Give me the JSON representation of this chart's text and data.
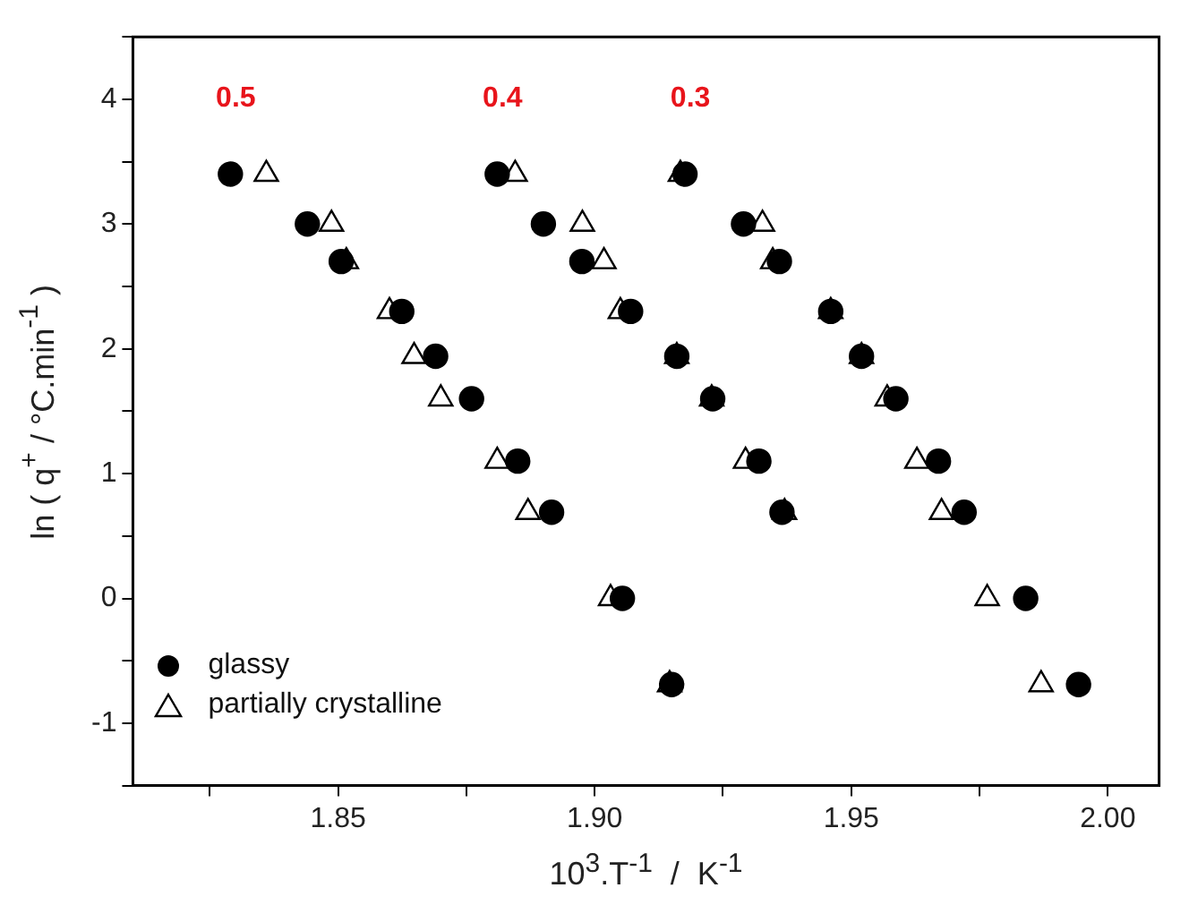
{
  "chart_data": {
    "type": "scatter",
    "xlabel": "10$^{3}$.T$^{-1}$  /  K$^{-1}$",
    "ylabel": "ln ( q$^{+}$ / °C.min$^{-1}$ )",
    "series": [
      {
        "name": "glassy",
        "color": "#000000",
        "marker": "circle",
        "x": [
          1.829,
          1.844,
          1.8506,
          1.8624,
          1.869,
          1.876,
          1.885,
          1.8916,
          1.881,
          1.89,
          1.8975,
          1.907,
          1.916,
          1.923,
          1.932,
          1.9365,
          1.9054,
          1.915,
          1.9176,
          1.929,
          1.936,
          1.946,
          1.952,
          1.9587,
          1.967,
          1.972,
          1.984,
          1.9943
        ],
        "values": [
          3.4,
          3.0,
          2.7,
          2.3,
          1.94,
          1.6,
          1.1,
          0.69,
          3.4,
          3.0,
          2.7,
          2.3,
          1.94,
          1.6,
          1.1,
          0.69,
          0,
          -0.69,
          3.4,
          3.0,
          2.7,
          2.3,
          1.94,
          1.6,
          1.1,
          0.69,
          0,
          -0.69
        ]
      },
      {
        "name": "partially crystalline",
        "color": "#000000",
        "marker": "triangle",
        "x": [
          1.836,
          1.8487,
          1.8516,
          1.86,
          1.8648,
          1.87,
          1.881,
          1.887,
          1.8845,
          1.8976,
          1.9018,
          1.905,
          1.916,
          1.9228,
          1.9294,
          1.937,
          1.9031,
          1.9146,
          1.9167,
          1.9327,
          1.9347,
          1.946,
          1.952,
          1.957,
          1.9628,
          1.9676,
          1.9765,
          1.987
        ],
        "values": [
          3.4,
          3.0,
          2.7,
          2.3,
          1.94,
          1.6,
          1.1,
          0.69,
          3.4,
          3.0,
          2.7,
          2.3,
          1.94,
          1.6,
          1.1,
          0.69,
          0,
          -0.69,
          3.4,
          3.0,
          2.7,
          2.3,
          1.94,
          1.6,
          1.1,
          0.69,
          0,
          -0.69
        ]
      }
    ],
    "annotations": [
      "0.5",
      "0.4",
      "0.3"
    ],
    "xlim": [
      1.81,
      2.01
    ],
    "xticks": [
      {
        "value": 1.825,
        "label": null
      },
      1.85,
      {
        "value": 1.875,
        "label": null
      },
      "1.90",
      {
        "value": 1.925,
        "label": null
      },
      1.95,
      {
        "value": 1.975,
        "label": null
      },
      "2.00"
    ],
    "ylim": [
      -1.5,
      4.5
    ],
    "yticks": [
      {
        "value": -1.5,
        "label": null
      },
      -1,
      {
        "value": -0.5,
        "label": null
      },
      0,
      {
        "value": 0.5,
        "label": null
      },
      1,
      {
        "value": 1.5,
        "label": null
      },
      2,
      {
        "value": 2.5,
        "label": null
      },
      3,
      {
        "value": 3.5,
        "label": null
      },
      4,
      {
        "value": 4.5,
        "label": null
      }
    ],
    "grid": false,
    "legend": "bottom left"
  }
}
